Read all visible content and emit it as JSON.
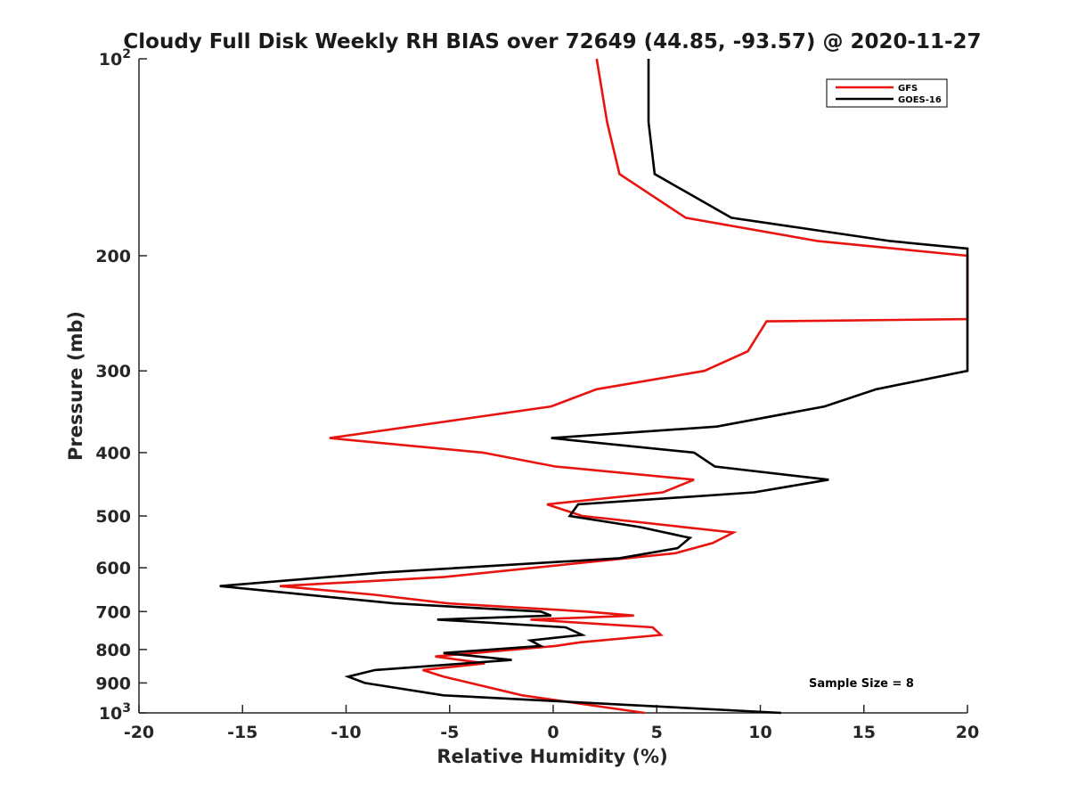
{
  "chart_data": {
    "type": "line",
    "title": "Cloudy Full Disk Weekly RH BIAS over 72649 (44.85, -93.57) @ 2020-11-27",
    "xlabel": "Relative Humidity (%)",
    "ylabel": "Pressure (mb)",
    "xlim": [
      -20,
      20
    ],
    "ylim": [
      100,
      1000
    ],
    "y_scale": "log",
    "y_reversed": true,
    "x_ticks": [
      "-20",
      "-15",
      "-10",
      "-5",
      "0",
      "5",
      "10",
      "15",
      "20"
    ],
    "y_ticks": [
      {
        "value": 100,
        "base": "10",
        "exp": "2"
      },
      {
        "value": 200,
        "label": "200"
      },
      {
        "value": 300,
        "label": "300"
      },
      {
        "value": 400,
        "label": "400"
      },
      {
        "value": 500,
        "label": "500"
      },
      {
        "value": 600,
        "label": "600"
      },
      {
        "value": 700,
        "label": "700"
      },
      {
        "value": 800,
        "label": "800"
      },
      {
        "value": 900,
        "label": "900"
      },
      {
        "value": 1000,
        "base": "10",
        "exp": "3"
      }
    ],
    "grid": false,
    "legend_position": "top-right",
    "annotation": "Sample Size = 8",
    "series": [
      {
        "name": "GFS",
        "color": "#e8140f",
        "points": [
          [
            2.1,
            100
          ],
          [
            2.6,
            125
          ],
          [
            3.2,
            150
          ],
          [
            6.4,
            175
          ],
          [
            12.8,
            190
          ],
          [
            20.0,
            200
          ],
          [
            20.0,
            250
          ],
          [
            10.3,
            252
          ],
          [
            9.4,
            280
          ],
          [
            7.3,
            300
          ],
          [
            2.1,
            320
          ],
          [
            -0.1,
            340
          ],
          [
            -10.8,
            380
          ],
          [
            -3.4,
            400
          ],
          [
            0.1,
            420
          ],
          [
            6.8,
            440
          ],
          [
            5.3,
            460
          ],
          [
            -0.3,
            480
          ],
          [
            1.4,
            500
          ],
          [
            8.7,
            530
          ],
          [
            7.7,
            550
          ],
          [
            5.9,
            570
          ],
          [
            -5.3,
            620
          ],
          [
            -13.2,
            640
          ],
          [
            -8.6,
            660
          ],
          [
            -5.1,
            680
          ],
          [
            1.6,
            700
          ],
          [
            3.9,
            710
          ],
          [
            -1.1,
            720
          ],
          [
            4.8,
            740
          ],
          [
            5.2,
            760
          ],
          [
            1.3,
            780
          ],
          [
            0.1,
            790
          ],
          [
            -5.7,
            820
          ],
          [
            -3.3,
            840
          ],
          [
            -6.3,
            860
          ],
          [
            -5.3,
            880
          ],
          [
            -1.5,
            940
          ],
          [
            4.4,
            1000
          ]
        ]
      },
      {
        "name": "GOES-16",
        "color": "#000000",
        "points": [
          [
            4.6,
            100
          ],
          [
            4.6,
            125
          ],
          [
            4.9,
            150
          ],
          [
            8.6,
            175
          ],
          [
            16.3,
            190
          ],
          [
            20.0,
            195
          ],
          [
            20.0,
            300
          ],
          [
            15.6,
            320
          ],
          [
            13.1,
            340
          ],
          [
            7.9,
            365
          ],
          [
            -0.1,
            380
          ],
          [
            6.8,
            400
          ],
          [
            7.8,
            420
          ],
          [
            13.3,
            440
          ],
          [
            9.7,
            460
          ],
          [
            1.2,
            480
          ],
          [
            0.8,
            500
          ],
          [
            4.2,
            520
          ],
          [
            6.6,
            540
          ],
          [
            6.0,
            560
          ],
          [
            3.2,
            580
          ],
          [
            -8.2,
            610
          ],
          [
            -16.1,
            640
          ],
          [
            -7.7,
            680
          ],
          [
            -0.6,
            700
          ],
          [
            -0.1,
            710
          ],
          [
            -5.6,
            720
          ],
          [
            0.6,
            740
          ],
          [
            1.4,
            760
          ],
          [
            -1.1,
            775
          ],
          [
            -0.6,
            790
          ],
          [
            -5.3,
            810
          ],
          [
            -2.0,
            830
          ],
          [
            -8.6,
            860
          ],
          [
            -9.9,
            880
          ],
          [
            -9.1,
            900
          ],
          [
            -5.3,
            940
          ],
          [
            11.0,
            1000
          ]
        ]
      }
    ]
  }
}
